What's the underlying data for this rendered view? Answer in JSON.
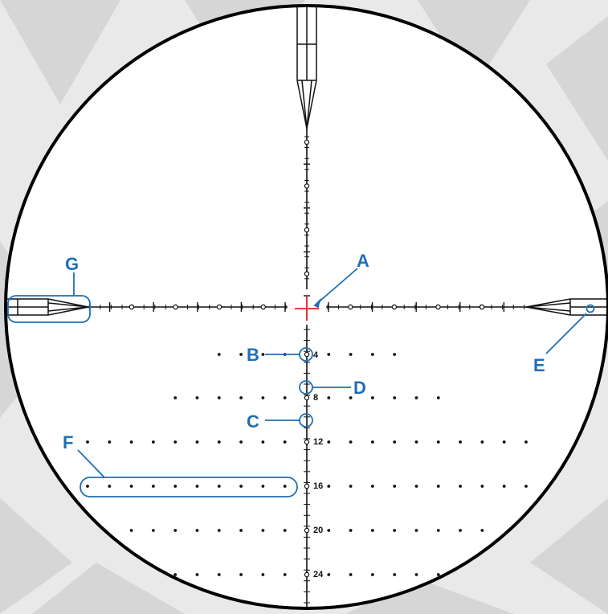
{
  "colors": {
    "background": "#e9e9e9",
    "background_tile": "#d6d6d6",
    "field": "#ffffff",
    "reticle": "#111111",
    "center_mark": "#e0202a",
    "callout": "#1f6fb5"
  },
  "reticle": {
    "elevation_labels": [
      "4",
      "8",
      "12",
      "16",
      "20",
      "24"
    ]
  },
  "callouts": [
    {
      "id": "a",
      "label": "A"
    },
    {
      "id": "b",
      "label": "B"
    },
    {
      "id": "c",
      "label": "C"
    },
    {
      "id": "d",
      "label": "D"
    },
    {
      "id": "e",
      "label": "E"
    },
    {
      "id": "f",
      "label": "F"
    },
    {
      "id": "g",
      "label": "G"
    }
  ]
}
